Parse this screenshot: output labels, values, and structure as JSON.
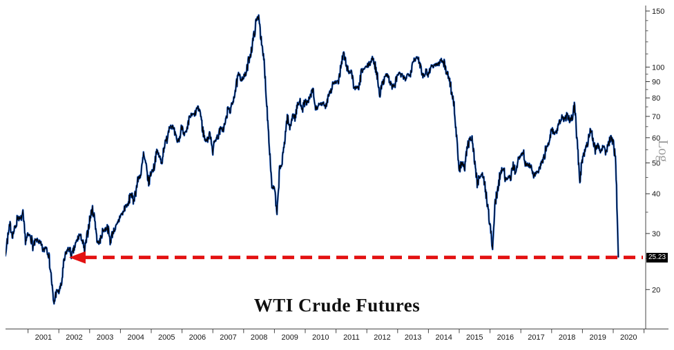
{
  "chart_data": {
    "type": "line",
    "title": "WTI Crude Futures",
    "background": "#ffffff",
    "grid": false,
    "last_price": 25.23,
    "series": [
      {
        "name": "WTI Crude Futures",
        "line_color": "#000000",
        "halo_color": "#1257c8",
        "start_year": 2000,
        "interval_months": 1,
        "values": [
          27.2,
          29.4,
          29.9,
          25.7,
          28.8,
          31.8,
          29.7,
          31.3,
          33.9,
          33.1,
          34.4,
          28.4,
          29.6,
          29.6,
          27.2,
          28.5,
          28.6,
          27.6,
          26.4,
          27.5,
          25.9,
          22.2,
          17.9,
          19.8,
          19.7,
          20.7,
          24.4,
          26.3,
          27.0,
          25.5,
          26.9,
          28.4,
          29.7,
          28.9,
          26.3,
          29.4,
          33.0,
          35.9,
          33.5,
          28.2,
          28.1,
          30.7,
          30.8,
          31.6,
          28.3,
          30.3,
          31.1,
          32.2,
          34.3,
          34.7,
          36.8,
          36.7,
          40.3,
          38.0,
          40.8,
          44.9,
          45.9,
          53.1,
          48.5,
          43.3,
          46.8,
          48.0,
          54.3,
          53.0,
          49.8,
          56.4,
          59.0,
          65.0,
          65.6,
          62.4,
          58.3,
          59.4,
          65.5,
          61.6,
          62.9,
          69.7,
          70.9,
          70.9,
          74.4,
          73.1,
          63.9,
          58.9,
          59.4,
          62.0,
          54.6,
          59.3,
          60.6,
          64.0,
          63.5,
          67.5,
          74.1,
          72.4,
          79.9,
          86.2,
          94.6,
          91.7,
          92.9,
          95.4,
          105.6,
          112.6,
          125.4,
          140.0,
          145.3,
          116.6,
          103.9,
          76.7,
          57.4,
          42.0,
          41.7,
          34.0,
          48.0,
          49.8,
          59.2,
          69.7,
          64.1,
          71.1,
          69.5,
          75.8,
          78.0,
          74.3,
          78.2,
          76.4,
          81.2,
          84.5,
          73.8,
          75.4,
          76.4,
          76.6,
          75.3,
          81.9,
          84.3,
          89.2,
          89.4,
          89.6,
          102.9,
          110.0,
          101.3,
          96.3,
          97.3,
          86.3,
          85.6,
          86.4,
          97.2,
          98.6,
          100.3,
          102.3,
          106.2,
          103.3,
          94.7,
          82.4,
          87.9,
          94.1,
          94.6,
          89.5,
          86.7,
          88.2,
          94.8,
          95.3,
          92.9,
          92.0,
          94.8,
          95.8,
          104.7,
          106.6,
          106.3,
          100.5,
          93.9,
          97.6,
          94.6,
          100.8,
          100.8,
          102.1,
          102.2,
          105.8,
          103.6,
          96.5,
          93.2,
          84.4,
          75.8,
          59.3,
          47.2,
          50.6,
          47.8,
          54.5,
          59.3,
          59.8,
          50.9,
          42.9,
          45.5,
          46.2,
          42.4,
          37.2,
          31.7,
          26.9,
          37.6,
          41.0,
          46.7,
          48.8,
          44.7,
          44.7,
          45.2,
          49.8,
          45.7,
          52.0,
          52.8,
          54.0,
          49.3,
          49.3,
          48.5,
          45.2,
          46.6,
          47.2,
          49.8,
          51.6,
          56.6,
          57.9,
          63.7,
          62.2,
          62.7,
          66.3,
          70.0,
          67.9,
          70.6,
          68.1,
          70.2,
          76.4,
          57.0,
          44.2,
          51.6,
          55.0,
          58.2,
          63.9,
          60.8,
          54.7,
          57.4,
          54.8,
          56.9,
          54.0,
          57.0,
          59.9,
          57.5,
          50.5,
          25.23
        ]
      }
    ],
    "xaxis": {
      "labels": [
        "2001",
        "2002",
        "2003",
        "2004",
        "2005",
        "2006",
        "2007",
        "2008",
        "2009",
        "2010",
        "2011",
        "2012",
        "2013",
        "2014",
        "2015",
        "2016",
        "2017",
        "2018",
        "2019",
        "2020"
      ],
      "range": [
        2000.1,
        2020.9
      ]
    },
    "yaxis": {
      "scale": "log",
      "scale_label": "Log",
      "side": "right",
      "ticks": [
        150,
        100,
        90,
        80,
        70,
        60,
        50,
        40,
        30,
        20
      ],
      "minor_ticks": [
        140,
        130,
        120,
        110,
        95,
        85,
        75,
        65,
        55,
        45,
        35,
        25
      ],
      "range": [
        15.5,
        152
      ]
    },
    "annotation": {
      "type": "dashed-arrow-left",
      "value": 25.23,
      "label": "25.23",
      "color": "#e31212"
    }
  }
}
